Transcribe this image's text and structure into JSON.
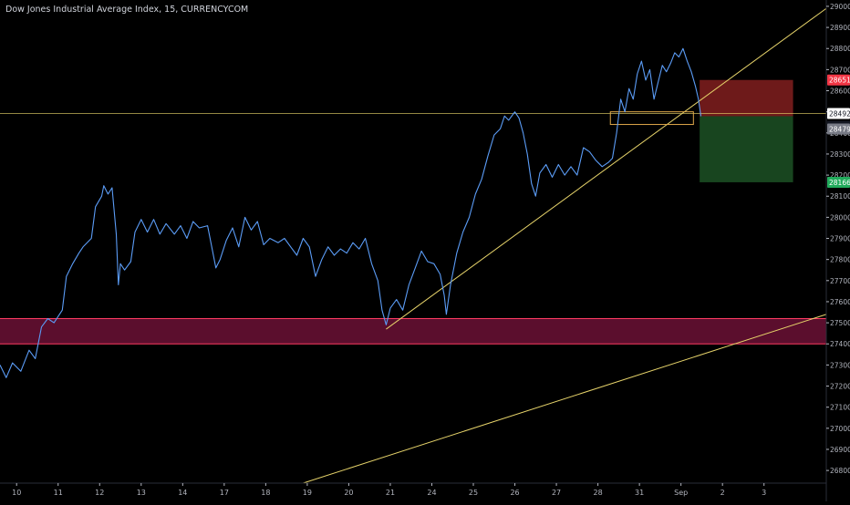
{
  "header": {
    "title": "Dow Jones Industrial Average Index, 15, CURRENCYCOM"
  },
  "colors": {
    "background": "#000000",
    "price_line": "#5b9cf6",
    "trend_line": "#e6d36a",
    "support_zone": "#6b1035",
    "support_zone_border": "#ff3b62",
    "stop_zone": "#7a1d1d",
    "target_zone": "#1b4d22",
    "stop_label": "#f23645",
    "target_label": "#22ab5c",
    "current_label": "#ffffff",
    "entry_label": "#787b86",
    "axis_text": "#b2b5be"
  },
  "chart_data": {
    "type": "line",
    "title": "Dow Jones Industrial Average Index, 15, CURRENCYCOM",
    "xlabel": "",
    "ylabel": "",
    "ylim": [
      26740,
      29030
    ],
    "grid": false,
    "y_ticks": [
      26800,
      26900,
      27000,
      27100,
      27200,
      27300,
      27400,
      27500,
      27600,
      27700,
      27800,
      27900,
      28000,
      28100,
      28200,
      28300,
      28400,
      28500,
      28600,
      28700,
      28800,
      28900,
      29000
    ],
    "x_ticks": [
      {
        "label": "10",
        "t": 0.4
      },
      {
        "label": "11",
        "t": 1.4
      },
      {
        "label": "12",
        "t": 2.4
      },
      {
        "label": "13",
        "t": 3.4
      },
      {
        "label": "14",
        "t": 4.4
      },
      {
        "label": "17",
        "t": 5.4
      },
      {
        "label": "18",
        "t": 6.4
      },
      {
        "label": "19",
        "t": 7.4
      },
      {
        "label": "20",
        "t": 8.4
      },
      {
        "label": "21",
        "t": 9.4
      },
      {
        "label": "24",
        "t": 10.4
      },
      {
        "label": "25",
        "t": 11.4
      },
      {
        "label": "26",
        "t": 12.4
      },
      {
        "label": "27",
        "t": 13.4
      },
      {
        "label": "28",
        "t": 14.4
      },
      {
        "label": "31",
        "t": 15.4
      },
      {
        "label": "Sep",
        "t": 16.4
      },
      {
        "label": "2",
        "t": 17.4
      },
      {
        "label": "3",
        "t": 18.4
      }
    ],
    "price_path": [
      [
        0.0,
        27300
      ],
      [
        0.15,
        27240
      ],
      [
        0.3,
        27310
      ],
      [
        0.5,
        27270
      ],
      [
        0.7,
        27370
      ],
      [
        0.85,
        27330
      ],
      [
        1.0,
        27480
      ],
      [
        1.15,
        27520
      ],
      [
        1.3,
        27500
      ],
      [
        1.5,
        27560
      ],
      [
        1.6,
        27720
      ],
      [
        1.75,
        27780
      ],
      [
        1.9,
        27830
      ],
      [
        2.0,
        27860
      ],
      [
        2.2,
        27900
      ],
      [
        2.3,
        28050
      ],
      [
        2.45,
        28100
      ],
      [
        2.5,
        28150
      ],
      [
        2.6,
        28110
      ],
      [
        2.7,
        28140
      ],
      [
        2.8,
        27920
      ],
      [
        2.85,
        27680
      ],
      [
        2.9,
        27780
      ],
      [
        3.0,
        27750
      ],
      [
        3.15,
        27790
      ],
      [
        3.25,
        27930
      ],
      [
        3.4,
        27990
      ],
      [
        3.55,
        27930
      ],
      [
        3.7,
        27990
      ],
      [
        3.85,
        27920
      ],
      [
        4.0,
        27970
      ],
      [
        4.2,
        27920
      ],
      [
        4.35,
        27960
      ],
      [
        4.5,
        27900
      ],
      [
        4.65,
        27980
      ],
      [
        4.8,
        27950
      ],
      [
        5.0,
        27960
      ],
      [
        5.2,
        27760
      ],
      [
        5.3,
        27800
      ],
      [
        5.45,
        27890
      ],
      [
        5.6,
        27950
      ],
      [
        5.75,
        27860
      ],
      [
        5.9,
        28000
      ],
      [
        6.05,
        27940
      ],
      [
        6.2,
        27980
      ],
      [
        6.35,
        27870
      ],
      [
        6.5,
        27900
      ],
      [
        6.7,
        27880
      ],
      [
        6.85,
        27900
      ],
      [
        7.0,
        27860
      ],
      [
        7.15,
        27820
      ],
      [
        7.3,
        27900
      ],
      [
        7.45,
        27860
      ],
      [
        7.6,
        27720
      ],
      [
        7.75,
        27800
      ],
      [
        7.9,
        27860
      ],
      [
        8.05,
        27820
      ],
      [
        8.2,
        27850
      ],
      [
        8.35,
        27830
      ],
      [
        8.5,
        27880
      ],
      [
        8.65,
        27850
      ],
      [
        8.8,
        27900
      ],
      [
        8.95,
        27780
      ],
      [
        9.1,
        27700
      ],
      [
        9.2,
        27560
      ],
      [
        9.3,
        27490
      ],
      [
        9.4,
        27570
      ],
      [
        9.55,
        27610
      ],
      [
        9.7,
        27560
      ],
      [
        9.85,
        27680
      ],
      [
        10.0,
        27760
      ],
      [
        10.15,
        27840
      ],
      [
        10.3,
        27790
      ],
      [
        10.45,
        27780
      ],
      [
        10.6,
        27730
      ],
      [
        10.7,
        27630
      ],
      [
        10.75,
        27540
      ],
      [
        10.85,
        27680
      ],
      [
        11.0,
        27830
      ],
      [
        11.15,
        27930
      ],
      [
        11.3,
        28000
      ],
      [
        11.45,
        28110
      ],
      [
        11.6,
        28180
      ],
      [
        11.75,
        28290
      ],
      [
        11.9,
        28390
      ],
      [
        12.05,
        28420
      ],
      [
        12.15,
        28480
      ],
      [
        12.25,
        28460
      ],
      [
        12.4,
        28500
      ],
      [
        12.5,
        28470
      ],
      [
        12.6,
        28400
      ],
      [
        12.7,
        28300
      ],
      [
        12.8,
        28160
      ],
      [
        12.9,
        28100
      ],
      [
        13.0,
        28210
      ],
      [
        13.15,
        28250
      ],
      [
        13.3,
        28190
      ],
      [
        13.45,
        28250
      ],
      [
        13.6,
        28200
      ],
      [
        13.75,
        28240
      ],
      [
        13.9,
        28200
      ],
      [
        14.05,
        28330
      ],
      [
        14.2,
        28310
      ],
      [
        14.35,
        28270
      ],
      [
        14.5,
        28240
      ],
      [
        14.65,
        28260
      ],
      [
        14.75,
        28280
      ],
      [
        14.85,
        28400
      ],
      [
        14.95,
        28560
      ],
      [
        15.05,
        28500
      ],
      [
        15.15,
        28610
      ],
      [
        15.25,
        28560
      ],
      [
        15.35,
        28680
      ],
      [
        15.45,
        28740
      ],
      [
        15.55,
        28650
      ],
      [
        15.65,
        28700
      ],
      [
        15.75,
        28560
      ],
      [
        15.85,
        28640
      ],
      [
        15.95,
        28720
      ],
      [
        16.05,
        28690
      ],
      [
        16.15,
        28730
      ],
      [
        16.25,
        28780
      ],
      [
        16.35,
        28760
      ],
      [
        16.45,
        28800
      ],
      [
        16.55,
        28740
      ],
      [
        16.65,
        28690
      ],
      [
        16.75,
        28620
      ],
      [
        16.82,
        28560
      ],
      [
        16.88,
        28479
      ]
    ],
    "support_zone": {
      "from": 27400,
      "to": 27520
    },
    "horizontal_line": 28492,
    "trend_lines": [
      {
        "from": [
          9.3,
          27470
        ],
        "to": [
          19.9,
          28990
        ]
      },
      {
        "from": [
          7.3,
          26740
        ],
        "to": [
          19.9,
          27540
        ]
      }
    ],
    "position": {
      "start_t": 16.85,
      "end_t": 19.1,
      "entry": 28479,
      "stop": 28651,
      "target": 28166
    },
    "price_labels": {
      "stop": "28651",
      "current": "28492",
      "countdown": "06:38",
      "entry": "28479",
      "target": "28166"
    }
  }
}
